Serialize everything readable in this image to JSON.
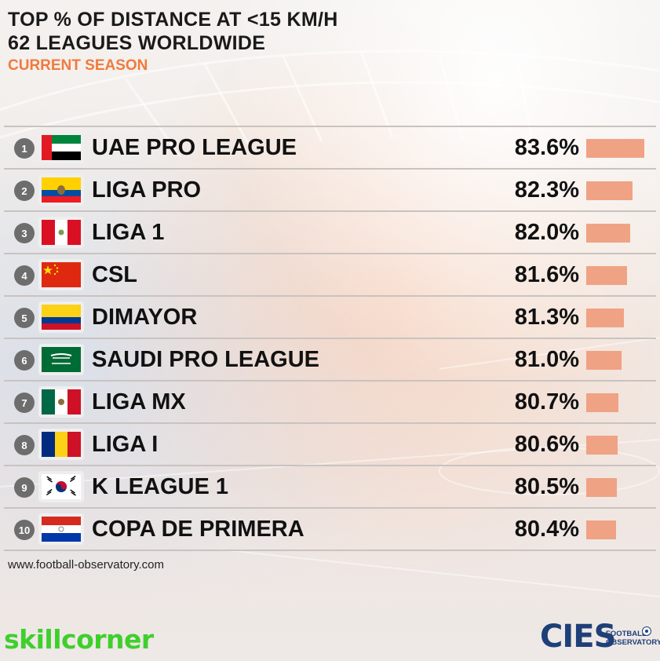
{
  "title_lines": [
    "TOP % OF DISTANCE AT <15 KM/H",
    "62 LEAGUES WORLDWIDE"
  ],
  "subtitle": "CURRENT SEASON",
  "source": "www.football-observatory.com",
  "logos": {
    "left": "SKILLCORNER",
    "right_main": "CIES",
    "right_sub_1": "FOOTBALL",
    "right_sub_2": "OBSERVATORY"
  },
  "colors": {
    "bar": "#f0a284",
    "subtitle": "#f07a3d",
    "skillcorner": "#3fcf2c",
    "cies": "#1e3f78",
    "rank_circle": "#6d6d6d"
  },
  "chart_data": {
    "type": "bar",
    "orientation": "horizontal",
    "bar_scale_min": 77.0,
    "bar_scale_max": 83.6,
    "rows": [
      {
        "rank": "1",
        "flag": "uae-flag",
        "league": "UAE PRO LEAGUE",
        "value": 83.6,
        "label": "83.6%"
      },
      {
        "rank": "2",
        "flag": "ecuador-flag",
        "league": "LIGA PRO",
        "value": 82.3,
        "label": "82.3%"
      },
      {
        "rank": "3",
        "flag": "peru-flag",
        "league": "LIGA 1",
        "value": 82.0,
        "label": "82.0%"
      },
      {
        "rank": "4",
        "flag": "china-flag",
        "league": "CSL",
        "value": 81.6,
        "label": "81.6%"
      },
      {
        "rank": "5",
        "flag": "colombia-flag",
        "league": "DIMAYOR",
        "value": 81.3,
        "label": "81.3%"
      },
      {
        "rank": "6",
        "flag": "saudi-arabia-flag",
        "league": "SAUDI PRO LEAGUE",
        "value": 81.0,
        "label": "81.0%"
      },
      {
        "rank": "7",
        "flag": "mexico-flag",
        "league": "LIGA MX",
        "value": 80.7,
        "label": "80.7%"
      },
      {
        "rank": "8",
        "flag": "romania-flag",
        "league": "LIGA I",
        "value": 80.6,
        "label": "80.6%"
      },
      {
        "rank": "9",
        "flag": "south-korea-flag",
        "league": "K LEAGUE 1",
        "value": 80.5,
        "label": "80.5%"
      },
      {
        "rank": "10",
        "flag": "paraguay-flag",
        "league": "COPA DE PRIMERA",
        "value": 80.4,
        "label": "80.4%"
      }
    ]
  }
}
